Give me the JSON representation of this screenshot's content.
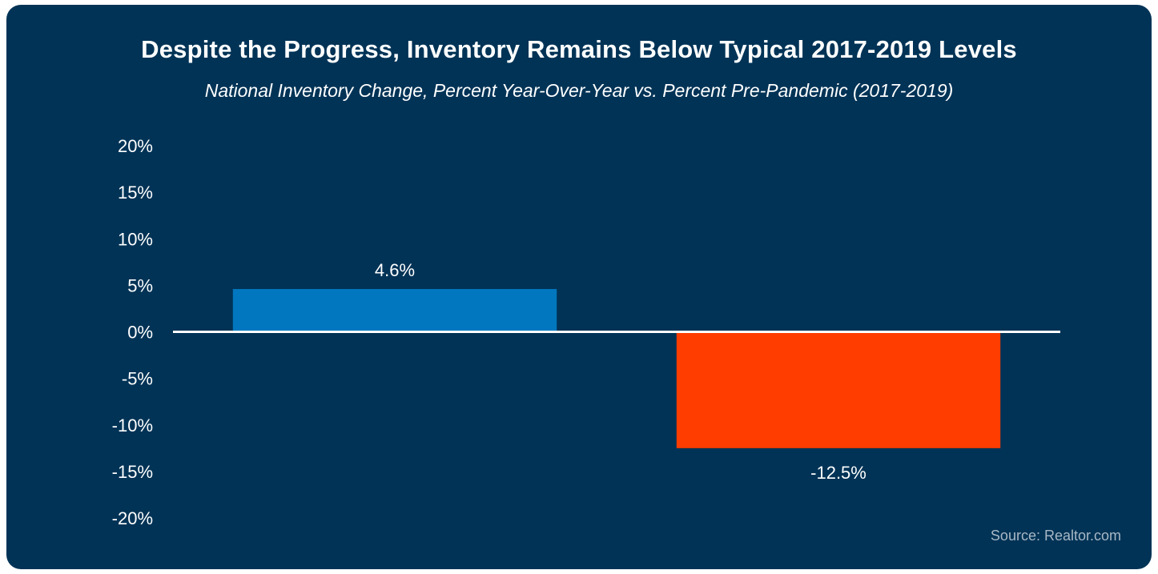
{
  "chart_data": {
    "type": "bar",
    "title": "Despite the Progress, Inventory Remains Below Typical 2017-2019 Levels",
    "subtitle": "National Inventory Change, Percent Year-Over-Year vs. Percent Pre-Pandemic (2017-2019)",
    "categories": [
      "",
      ""
    ],
    "values": [
      4.6,
      -12.5
    ],
    "data_labels": [
      "4.6%",
      "-12.5%"
    ],
    "colors": [
      "#0077BE",
      "#FF3D00"
    ],
    "ylim": [
      -20,
      20
    ],
    "yticks": [
      20,
      15,
      10,
      5,
      0,
      -5,
      -10,
      -15,
      -20
    ],
    "ytick_labels": [
      "20%",
      "15%",
      "10%",
      "5%",
      "0%",
      "-5%",
      "-10%",
      "-15%",
      "-20%"
    ],
    "xlabel": "",
    "ylabel": "",
    "grid": false,
    "legend": "none",
    "zero_line_color": "#ffffff",
    "background_color": "#003356"
  },
  "source": "Source: Realtor.com"
}
